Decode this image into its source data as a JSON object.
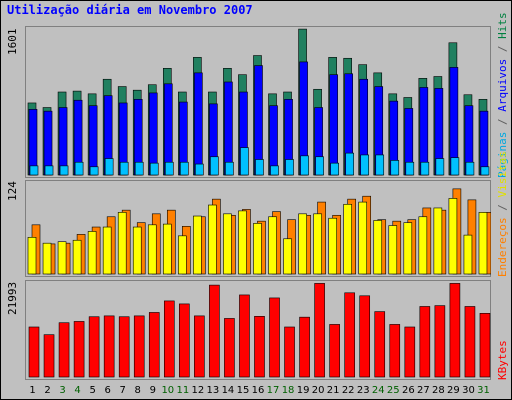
{
  "title": "Utilização diária em Novembro 2007",
  "panels": {
    "top": {
      "ymax_label": "1601",
      "legend": [
        {
          "text": "Páginas",
          "color": "#00a8e0"
        },
        {
          "text": " / ",
          "color": "#606060"
        },
        {
          "text": "Arquivos",
          "color": "#0000ff"
        },
        {
          "text": " / ",
          "color": "#606060"
        },
        {
          "text": "Hits",
          "color": "#008040"
        }
      ]
    },
    "middle": {
      "ymax_label": "124",
      "legend": [
        {
          "text": "Endereços",
          "color": "#ff8000"
        },
        {
          "text": " / ",
          "color": "#606060"
        },
        {
          "text": "Visitas",
          "color": "#e0e000"
        }
      ]
    },
    "bottom": {
      "ymax_label": "21993",
      "legend": [
        {
          "text": "KBytes",
          "color": "#ff0000"
        }
      ]
    }
  },
  "chart_data": {
    "type": "bar",
    "categories": [
      "1",
      "2",
      "3",
      "4",
      "5",
      "6",
      "7",
      "8",
      "9",
      "10",
      "11",
      "12",
      "13",
      "14",
      "15",
      "16",
      "17",
      "18",
      "19",
      "20",
      "21",
      "22",
      "23",
      "24",
      "25",
      "26",
      "27",
      "28",
      "29",
      "30",
      "31"
    ],
    "weekend_days": [
      "3",
      "4",
      "10",
      "11",
      "17",
      "18",
      "24",
      "25",
      "31"
    ],
    "colors": {
      "hits": "#208060",
      "files": "#0000ff",
      "pages": "#00c0ff",
      "visits": "#ffff00",
      "sites": "#ff8000",
      "kbytes": "#ff0000",
      "weekday_label": "#000000",
      "weekend_label": "#006000"
    },
    "panels": [
      {
        "name": "usage",
        "ymax": 1601,
        "series": [
          {
            "name": "Hits",
            "values": [
              790,
              740,
              910,
              920,
              890,
              1050,
              970,
              930,
              990,
              1170,
              910,
              1290,
              910,
              1170,
              1100,
              1310,
              890,
              910,
              1600,
              940,
              1290,
              1280,
              1210,
              1120,
              890,
              850,
              1060,
              1080,
              1450,
              880,
              830
            ]
          },
          {
            "name": "Arquivos",
            "values": [
              720,
              700,
              740,
              820,
              760,
              870,
              790,
              830,
              900,
              1000,
              800,
              1120,
              780,
              1020,
              910,
              1200,
              760,
              830,
              1240,
              740,
              1100,
              1110,
              1050,
              970,
              810,
              730,
              960,
              950,
              1180,
              760,
              700
            ]
          },
          {
            "name": "Páginas",
            "values": [
              100,
              100,
              100,
              140,
              90,
              180,
              140,
              140,
              130,
              140,
              140,
              120,
              200,
              140,
              300,
              170,
              100,
              170,
              210,
              200,
              130,
              240,
              220,
              220,
              160,
              140,
              140,
              180,
              190,
              140,
              90
            ]
          }
        ]
      },
      {
        "name": "visitors",
        "ymax": 124,
        "series": [
          {
            "name": "Endereços",
            "values": [
              67,
              41,
              42,
              54,
              64,
              78,
              87,
              70,
              82,
              87,
              65,
              78,
              102,
              80,
              88,
              72,
              85,
              74,
              80,
              98,
              80,
              102,
              106,
              74,
              72,
              74,
              90,
              87,
              116,
              101,
              84
            ]
          },
          {
            "name": "Visitas",
            "values": [
              50,
              42,
              44,
              46,
              58,
              64,
              84,
              64,
              67,
              68,
              52,
              79,
              94,
              82,
              86,
              69,
              78,
              48,
              82,
              82,
              76,
              95,
              98,
              73,
              66,
              70,
              78,
              90,
              103,
              53,
              84
            ]
          }
        ]
      },
      {
        "name": "traffic",
        "ymax": 21993,
        "series": [
          {
            "name": "KBytes",
            "values": [
              11700,
              9900,
              12700,
              13000,
              14100,
              14300,
              14100,
              14300,
              15100,
              17800,
              17100,
              14300,
              21500,
              13700,
              19200,
              14200,
              18500,
              11700,
              14000,
              21900,
              12300,
              19700,
              19000,
              15300,
              12300,
              11700,
              16500,
              16700,
              21900,
              16500,
              14900
            ]
          }
        ]
      }
    ]
  }
}
